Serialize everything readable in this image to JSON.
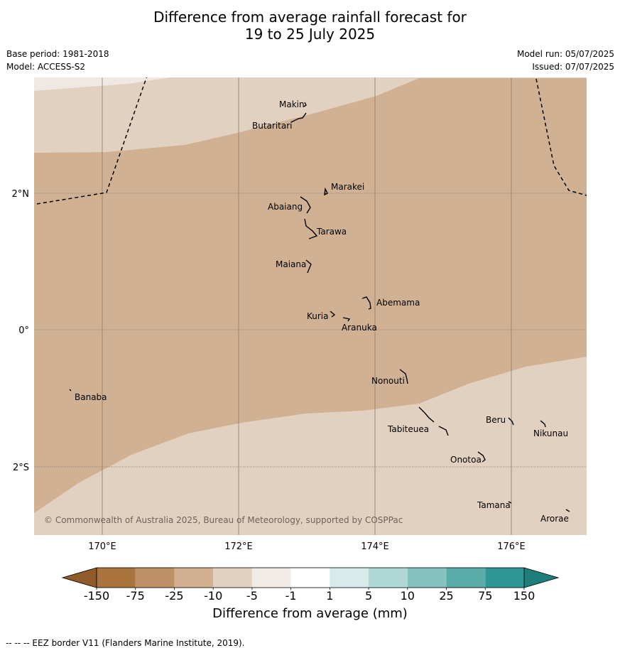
{
  "title_line1": "Difference from average rainfall forecast for",
  "title_line2": "19 to 25 July 2025",
  "base_period": "Base period: 1981-2018",
  "model": "Model: ACCESS-S2",
  "model_run": "Model run: 05/07/2025",
  "issued": "Issued: 07/07/2025",
  "copyright": "© Commonwealth of Australia 2025, Bureau of Meteorology, supported by COSPPac",
  "colorbar_title": "Difference from average (mm)",
  "footer": "--  --  -- EEZ border V11 (Flanders Marine Institute, 2019).",
  "lon_labels": [
    "170°E",
    "172°E",
    "174°E",
    "176°E"
  ],
  "lat_labels": [
    "2°N",
    "0°",
    "2°S"
  ],
  "colorbar": {
    "ticks": [
      "-150",
      "-75",
      "-25",
      "-10",
      "-5",
      "-1",
      "1",
      "5",
      "10",
      "25",
      "75",
      "150"
    ],
    "colors": [
      "#a9733d",
      "#be9065",
      "#d0b091",
      "#e2d0c0",
      "#f1ebe6",
      "#ffffff",
      "#d8ebeb",
      "#b0d8d7",
      "#85c2c0",
      "#5aacab",
      "#2e9896"
    ],
    "low_color": "#8f5b2a",
    "high_color": "#1d7e7c"
  },
  "map_colors": {
    "zone_minus25_to_minus10": "#d0b194",
    "zone_minus10_to_minus5": "#e2d0c0",
    "zone_minus5_to_minus1": "#efe8e3"
  },
  "places": [
    {
      "name": "Makin",
      "lon": 173.0,
      "lat": 3.3
    },
    {
      "name": "Butaritari",
      "lon": 172.8,
      "lat": 3.07
    },
    {
      "name": "Marakei",
      "lon": 173.3,
      "lat": 2.0
    },
    {
      "name": "Abaiang",
      "lon": 173.0,
      "lat": 1.8
    },
    {
      "name": "Tarawa",
      "lon": 173.1,
      "lat": 1.4
    },
    {
      "name": "Maiana",
      "lon": 173.0,
      "lat": 0.92
    },
    {
      "name": "Abemama",
      "lon": 173.9,
      "lat": 0.38
    },
    {
      "name": "Kuria",
      "lon": 173.4,
      "lat": 0.23
    },
    {
      "name": "Aranuka",
      "lon": 173.6,
      "lat": 0.18
    },
    {
      "name": "Nonouti",
      "lon": 174.4,
      "lat": -0.65
    },
    {
      "name": "Banaba",
      "lon": 169.54,
      "lat": -0.86
    },
    {
      "name": "Tabiteuea",
      "lon": 174.9,
      "lat": -1.35
    },
    {
      "name": "Beru",
      "lon": 176.0,
      "lat": -1.33
    },
    {
      "name": "Nikunau",
      "lon": 176.45,
      "lat": -1.37
    },
    {
      "name": "Onotoa",
      "lon": 175.55,
      "lat": -1.8
    },
    {
      "name": "Tamana",
      "lon": 175.98,
      "lat": -2.5
    },
    {
      "name": "Arorae",
      "lon": 176.82,
      "lat": -2.65
    }
  ]
}
